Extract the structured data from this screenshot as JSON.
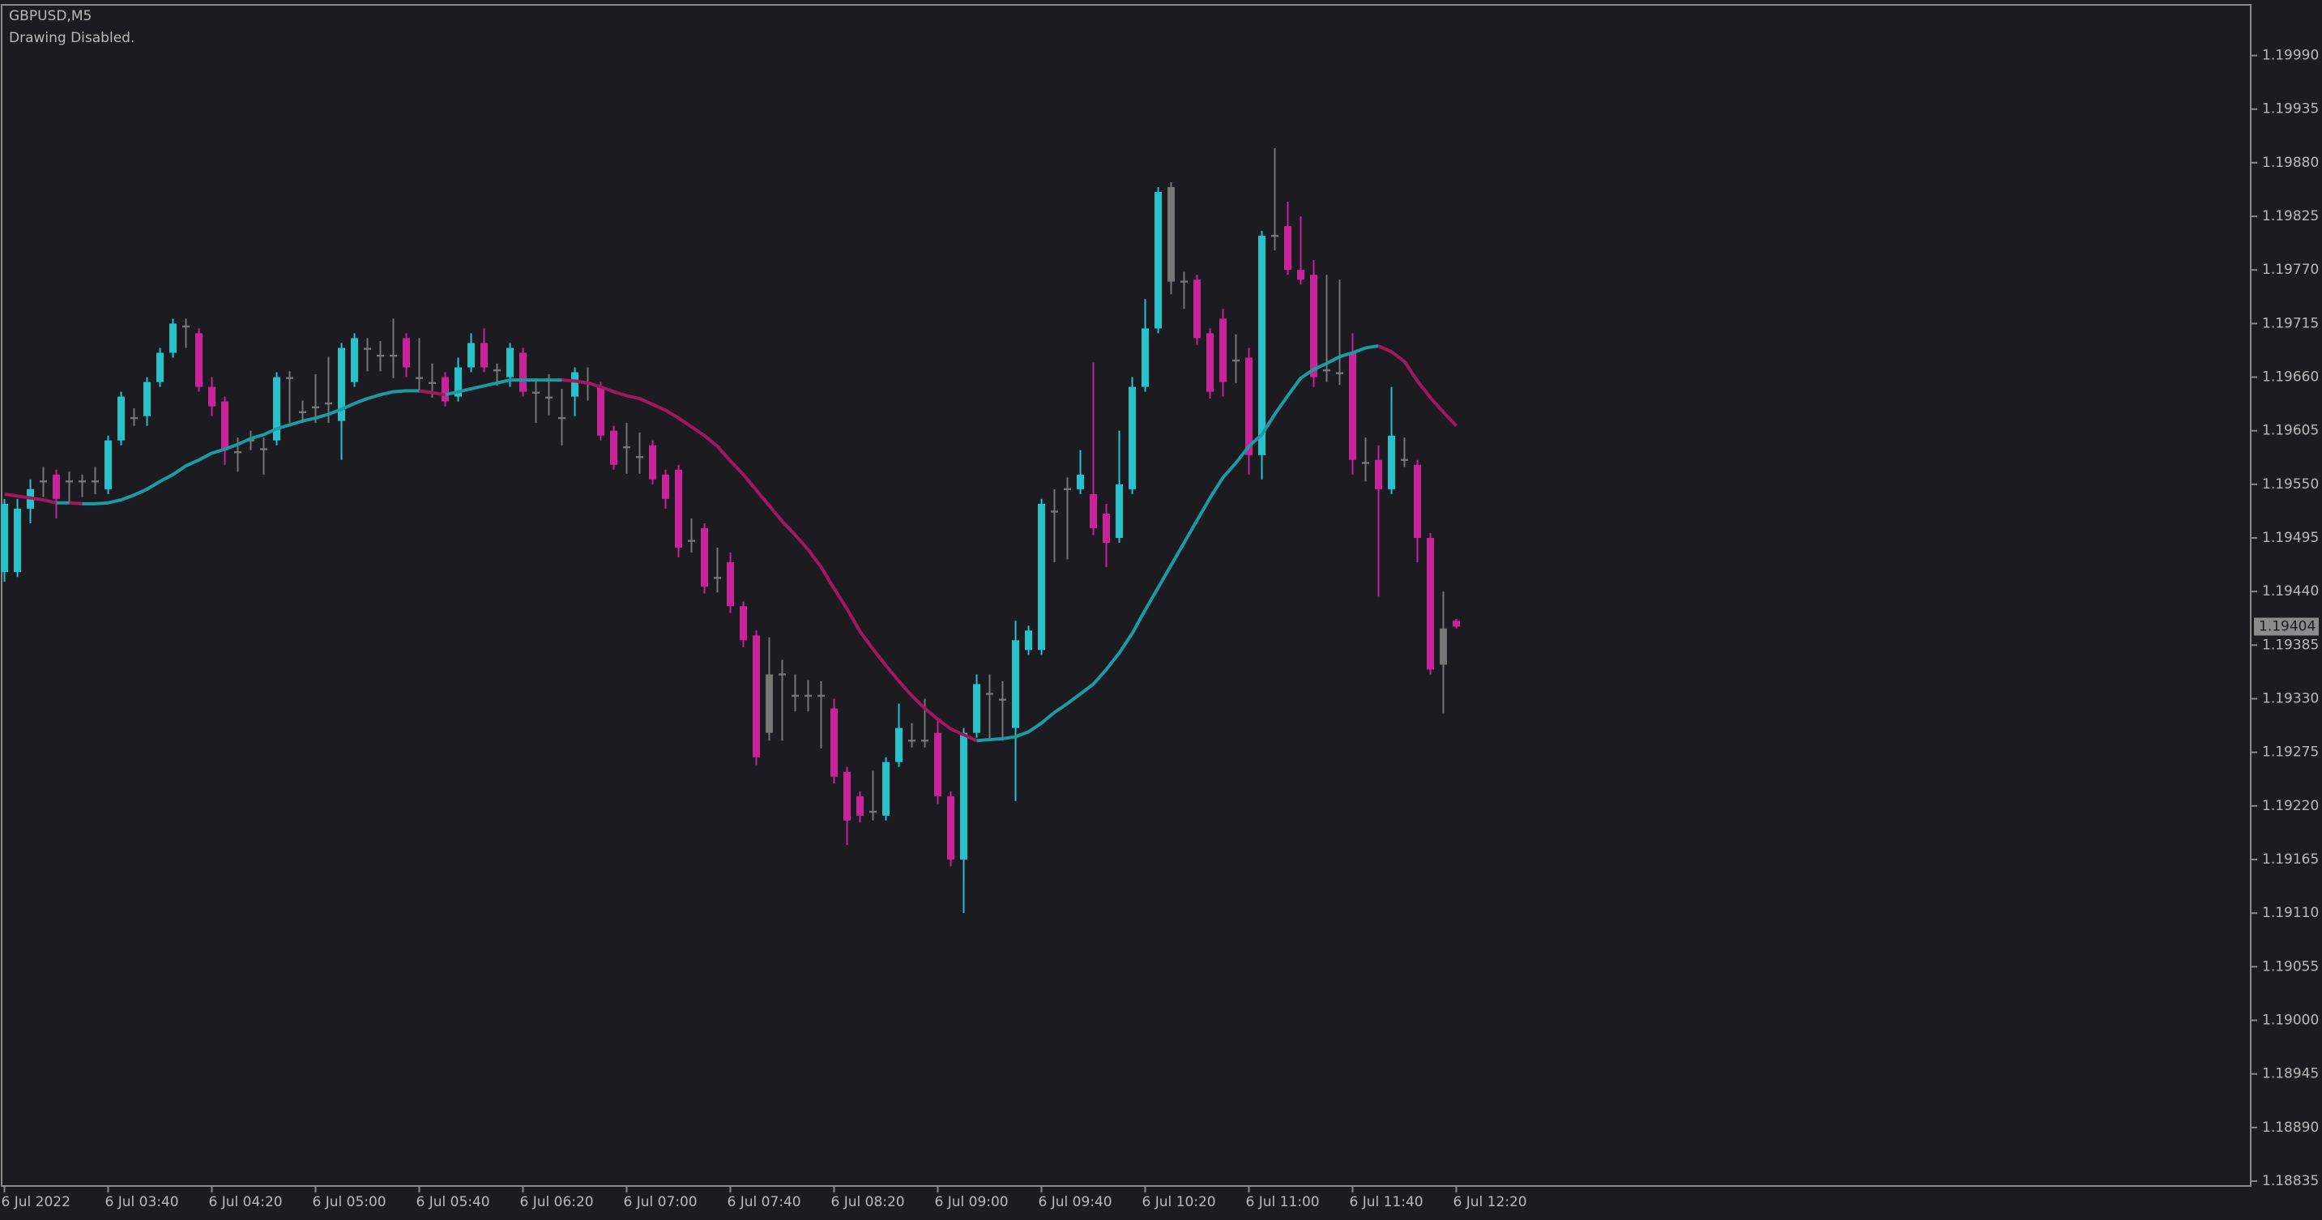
{
  "header": {
    "symbol": "GBPUSD,M5",
    "status": "Drawing Disabled."
  },
  "chart_data": {
    "type": "candlestick",
    "categories": [
      "6 Jul 2022",
      null,
      null,
      null,
      null,
      null,
      null,
      null,
      "6 Jul 03:40",
      null,
      null,
      null,
      null,
      null,
      null,
      null,
      "6 Jul 04:20",
      null,
      null,
      null,
      null,
      null,
      null,
      null,
      "6 Jul 05:00",
      null,
      null,
      null,
      null,
      null,
      null,
      null,
      "6 Jul 05:40",
      null,
      null,
      null,
      null,
      null,
      null,
      null,
      "6 Jul 06:20",
      null,
      null,
      null,
      null,
      null,
      null,
      null,
      "6 Jul 07:00",
      null,
      null,
      null,
      null,
      null,
      null,
      null,
      "6 Jul 07:40",
      null,
      null,
      null,
      null,
      null,
      null,
      null,
      "6 Jul 08:20",
      null,
      null,
      null,
      null,
      null,
      null,
      null,
      "6 Jul 09:00",
      null,
      null,
      null,
      null,
      null,
      null,
      null,
      "6 Jul 09:40",
      null,
      null,
      null,
      null,
      null,
      null,
      null,
      "6 Jul 10:20",
      null,
      null,
      null,
      null,
      null,
      null,
      null,
      "6 Jul 11:00",
      null,
      null,
      null,
      null,
      null,
      null,
      null,
      "6 Jul 11:40",
      null,
      null,
      null,
      null,
      null,
      null,
      null,
      "6 Jul 12:20"
    ],
    "open": [
      1.1946,
      1.1946,
      1.19525,
      1.19554,
      1.1956,
      1.19554,
      1.19554,
      1.19554,
      1.19545,
      1.19595,
      1.19619,
      1.1962,
      1.19655,
      1.19685,
      1.19713,
      1.19705,
      1.1965,
      1.19635,
      1.19584,
      1.19596,
      1.19587,
      1.19595,
      1.1966,
      1.19625,
      1.1963,
      1.19634,
      1.19615,
      1.19655,
      1.1969,
      1.19683,
      1.19683,
      1.197,
      1.1966,
      1.19655,
      1.1966,
      1.1964,
      1.1967,
      1.19695,
      1.19668,
      1.1966,
      1.19685,
      1.19645,
      1.1964,
      1.19619,
      1.1964,
      1.19655,
      1.1965,
      1.19605,
      1.19589,
      1.19579,
      1.1959,
      1.1956,
      1.19565,
      1.19493,
      1.19505,
      1.19455,
      1.1947,
      1.19425,
      1.19395,
      1.19355,
      1.19356,
      1.19334,
      1.19334,
      1.19334,
      1.1932,
      1.19255,
      1.1923,
      1.19215,
      1.1921,
      1.19265,
      1.19288,
      1.19288,
      1.19295,
      1.1923,
      1.19165,
      1.19295,
      1.19336,
      1.1933,
      1.193,
      1.1938,
      1.1938,
      1.19523,
      1.19546,
      1.19545,
      1.1954,
      1.1952,
      1.19495,
      1.19545,
      1.1965,
      1.1971,
      1.19855,
      1.19759,
      1.1976,
      1.19705,
      1.1972,
      1.19678,
      1.1968,
      1.1958,
      1.19806,
      1.19815,
      1.1977,
      1.19765,
      1.19668,
      1.19665,
      1.19685,
      1.19573,
      1.19575,
      1.19545,
      1.19576,
      1.1957,
      1.19495,
      1.19365,
      1.1941
    ],
    "high": [
      1.19535,
      1.19535,
      1.19555,
      1.19568,
      1.19565,
      1.19563,
      1.1956,
      1.19568,
      1.196,
      1.19645,
      1.19628,
      1.1966,
      1.1969,
      1.1972,
      1.1972,
      1.1971,
      1.1966,
      1.1964,
      1.19598,
      1.19605,
      1.19598,
      1.19665,
      1.19666,
      1.19636,
      1.19663,
      1.19681,
      1.19695,
      1.19705,
      1.197,
      1.19697,
      1.1972,
      1.19705,
      1.197,
      1.19674,
      1.19665,
      1.1968,
      1.19705,
      1.1971,
      1.19674,
      1.19695,
      1.1969,
      1.19659,
      1.19663,
      1.19648,
      1.1967,
      1.1967,
      1.19655,
      1.1961,
      1.19613,
      1.19603,
      1.19595,
      1.19565,
      1.1957,
      1.19515,
      1.1951,
      1.19485,
      1.1948,
      1.1943,
      1.194,
      1.19393,
      1.1937,
      1.19355,
      1.19349,
      1.19348,
      1.1933,
      1.1926,
      1.19235,
      1.19256,
      1.1927,
      1.19325,
      1.19305,
      1.1933,
      1.1931,
      1.19235,
      1.193,
      1.19355,
      1.19355,
      1.19348,
      1.1941,
      1.19405,
      1.19535,
      1.19545,
      1.19557,
      1.19585,
      1.19675,
      1.1953,
      1.19605,
      1.1966,
      1.1974,
      1.19855,
      1.1986,
      1.19768,
      1.19765,
      1.1971,
      1.1973,
      1.19704,
      1.1969,
      1.1981,
      1.19895,
      1.1984,
      1.19825,
      1.1978,
      1.19765,
      1.1976,
      1.19705,
      1.19598,
      1.1959,
      1.1965,
      1.19598,
      1.19575,
      1.195,
      1.1944,
      1.19412
    ],
    "low": [
      1.1945,
      1.19455,
      1.1951,
      1.19537,
      1.19515,
      1.1953,
      1.19537,
      1.1954,
      1.1954,
      1.1959,
      1.1961,
      1.1961,
      1.1965,
      1.1968,
      1.1969,
      1.19645,
      1.1962,
      1.1957,
      1.19563,
      1.19585,
      1.1956,
      1.1959,
      1.19613,
      1.19613,
      1.19613,
      1.19613,
      1.19575,
      1.1965,
      1.19666,
      1.19666,
      1.19659,
      1.1966,
      1.19644,
      1.19639,
      1.1963,
      1.19635,
      1.19665,
      1.19665,
      1.19651,
      1.1965,
      1.1964,
      1.19613,
      1.19621,
      1.1959,
      1.1962,
      1.19636,
      1.19595,
      1.19565,
      1.19561,
      1.19561,
      1.1955,
      1.19525,
      1.19475,
      1.1948,
      1.19438,
      1.19439,
      1.19418,
      1.19383,
      1.19262,
      1.19287,
      1.19287,
      1.19317,
      1.19317,
      1.19279,
      1.19243,
      1.1918,
      1.19203,
      1.19205,
      1.19205,
      1.1926,
      1.1928,
      1.1928,
      1.19222,
      1.19158,
      1.1911,
      1.1929,
      1.19287,
      1.19287,
      1.19225,
      1.19375,
      1.19375,
      1.1947,
      1.19473,
      1.1954,
      1.19498,
      1.19465,
      1.1949,
      1.1954,
      1.19645,
      1.19705,
      1.19745,
      1.1973,
      1.19693,
      1.19638,
      1.1964,
      1.19654,
      1.1956,
      1.19555,
      1.1979,
      1.19765,
      1.19755,
      1.1965,
      1.19655,
      1.19652,
      1.1956,
      1.19553,
      1.19435,
      1.1954,
      1.19568,
      1.1947,
      1.19355,
      1.19315,
      1.19402
    ],
    "close": [
      1.1953,
      1.19525,
      1.19545,
      1.19552,
      1.19535,
      1.19552,
      1.19552,
      1.19552,
      1.19595,
      1.1964,
      1.19617,
      1.19655,
      1.19685,
      1.19715,
      1.19711,
      1.1965,
      1.1963,
      1.19585,
      1.19582,
      1.19594,
      1.19585,
      1.1966,
      1.19658,
      1.19623,
      1.19628,
      1.19632,
      1.1969,
      1.197,
      1.19688,
      1.19681,
      1.19681,
      1.1967,
      1.19658,
      1.19653,
      1.19635,
      1.1967,
      1.19695,
      1.1967,
      1.19666,
      1.1969,
      1.19645,
      1.19643,
      1.19638,
      1.19617,
      1.19665,
      1.19653,
      1.196,
      1.1957,
      1.19587,
      1.19577,
      1.19555,
      1.19535,
      1.19485,
      1.19491,
      1.19445,
      1.19453,
      1.19425,
      1.1939,
      1.1927,
      1.19295,
      1.19354,
      1.19332,
      1.19332,
      1.19332,
      1.1925,
      1.19205,
      1.1921,
      1.19213,
      1.19265,
      1.193,
      1.19286,
      1.19286,
      1.1923,
      1.19165,
      1.19295,
      1.19345,
      1.19334,
      1.19328,
      1.1939,
      1.194,
      1.1953,
      1.19521,
      1.19544,
      1.1956,
      1.19505,
      1.1949,
      1.1955,
      1.1965,
      1.1971,
      1.1985,
      1.19758,
      1.19757,
      1.197,
      1.19645,
      1.19655,
      1.19676,
      1.1958,
      1.19805,
      1.19804,
      1.1977,
      1.1976,
      1.1966,
      1.19666,
      1.19663,
      1.19575,
      1.19571,
      1.19545,
      1.196,
      1.19574,
      1.19495,
      1.1936,
      1.19402,
      1.19404
    ],
    "candle_colors": [
      "#27c1cc",
      "#27c1cc",
      "#27c1cc",
      "#767676",
      "#c9239a",
      "#767676",
      "#767676",
      "#767676",
      "#27c1cc",
      "#27c1cc",
      "#767676",
      "#27c1cc",
      "#27c1cc",
      "#27c1cc",
      "#767676",
      "#c9239a",
      "#c9239a",
      "#c9239a",
      "#767676",
      "#767676",
      "#767676",
      "#27c1cc",
      "#767676",
      "#767676",
      "#767676",
      "#767676",
      "#27c1cc",
      "#27c1cc",
      "#767676",
      "#767676",
      "#767676",
      "#c9239a",
      "#767676",
      "#767676",
      "#c9239a",
      "#27c1cc",
      "#27c1cc",
      "#c9239a",
      "#767676",
      "#27c1cc",
      "#c9239a",
      "#767676",
      "#767676",
      "#767676",
      "#27c1cc",
      "#767676",
      "#c9239a",
      "#c9239a",
      "#767676",
      "#767676",
      "#c9239a",
      "#c9239a",
      "#c9239a",
      "#767676",
      "#c9239a",
      "#767676",
      "#c9239a",
      "#c9239a",
      "#c9239a",
      "#767676",
      "#767676",
      "#767676",
      "#767676",
      "#767676",
      "#c9239a",
      "#c9239a",
      "#c9239a",
      "#767676",
      "#27c1cc",
      "#27c1cc",
      "#767676",
      "#767676",
      "#c9239a",
      "#c9239a",
      "#27c1cc",
      "#27c1cc",
      "#767676",
      "#767676",
      "#27c1cc",
      "#27c1cc",
      "#27c1cc",
      "#767676",
      "#767676",
      "#27c1cc",
      "#c9239a",
      "#c9239a",
      "#27c1cc",
      "#27c1cc",
      "#27c1cc",
      "#27c1cc",
      "#767676",
      "#767676",
      "#c9239a",
      "#c9239a",
      "#c9239a",
      "#767676",
      "#c9239a",
      "#27c1cc",
      "#767676",
      "#c9239a",
      "#c9239a",
      "#c9239a",
      "#767676",
      "#767676",
      "#c9239a",
      "#767676",
      "#c9239a",
      "#27c1cc",
      "#767676",
      "#c9239a",
      "#c9239a",
      "#767676",
      "#c9239a"
    ],
    "ma_values": [
      1.1954,
      1.19538,
      1.19536,
      1.19534,
      1.19531,
      1.19531,
      1.1953,
      1.1953,
      1.19531,
      1.19534,
      1.19539,
      1.19545,
      1.19553,
      1.1956,
      1.19569,
      1.19575,
      1.19582,
      1.19586,
      1.19591,
      1.19597,
      1.19601,
      1.19607,
      1.19611,
      1.19615,
      1.19618,
      1.19622,
      1.19627,
      1.19633,
      1.19638,
      1.19642,
      1.19645,
      1.19646,
      1.19646,
      1.19644,
      1.19642,
      1.19645,
      1.19648,
      1.19651,
      1.19654,
      1.19657,
      1.19657,
      1.19657,
      1.19657,
      1.19657,
      1.19656,
      1.19654,
      1.1965,
      1.19645,
      1.19641,
      1.19638,
      1.19632,
      1.19626,
      1.19618,
      1.19609,
      1.196,
      1.19589,
      1.19574,
      1.1956,
      1.19544,
      1.19528,
      1.19512,
      1.19498,
      1.19483,
      1.19465,
      1.19443,
      1.19422,
      1.19399,
      1.19381,
      1.19364,
      1.19348,
      1.19333,
      1.1932,
      1.19309,
      1.19299,
      1.19293,
      1.19287,
      1.19288,
      1.19289,
      1.19291,
      1.19296,
      1.19305,
      1.19316,
      1.19325,
      1.19335,
      1.19345,
      1.1936,
      1.19377,
      1.19397,
      1.19421,
      1.19444,
      1.19467,
      1.1949,
      1.19513,
      1.19536,
      1.19557,
      1.19572,
      1.19589,
      1.19601,
      1.19622,
      1.19641,
      1.19659,
      1.19668,
      1.19674,
      1.19681,
      1.19685,
      1.1969,
      1.19692,
      1.19686,
      1.19676,
      1.19656,
      1.19639,
      1.19624,
      1.1961
    ],
    "ma_up_color": "#1a9ca2",
    "ma_down_color": "#a3175f",
    "last_price": 1.19404,
    "ylim": [
      1.1883,
      1.20042
    ],
    "yticks": [
      1.18835,
      {
        "value": 1.1889,
        "label": "1.18890"
      },
      1.18945,
      {
        "value": 1.19,
        "label": "1.19000"
      },
      1.19055,
      {
        "value": 1.1911,
        "label": "1.19110"
      },
      1.19165,
      {
        "value": 1.1922,
        "label": "1.19220"
      },
      1.19275,
      {
        "value": 1.1933,
        "label": "1.19330"
      },
      1.19385,
      {
        "value": 1.1944,
        "label": "1.19440"
      },
      1.19495,
      {
        "value": 1.1955,
        "label": "1.19550"
      },
      1.19605,
      {
        "value": 1.1966,
        "label": "1.19660"
      },
      1.19715,
      {
        "value": 1.1977,
        "label": "1.19770"
      },
      1.19825,
      {
        "value": 1.1988,
        "label": "1.19880"
      },
      1.19935,
      {
        "value": 1.1999,
        "label": "1.19990"
      }
    ]
  }
}
